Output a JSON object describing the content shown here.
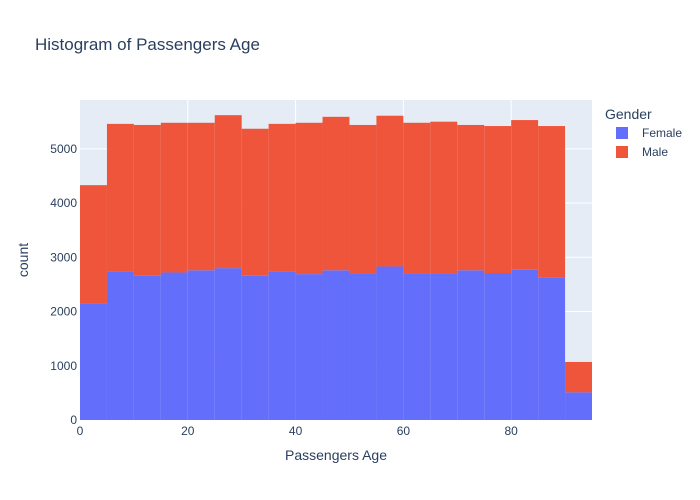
{
  "chart_data": {
    "type": "bar",
    "title": "Histogram of Passengers Age",
    "xlabel": "Passengers Age",
    "ylabel": "count",
    "barmode": "stack",
    "bin_width": 5,
    "x": [
      0,
      5,
      10,
      15,
      20,
      25,
      30,
      35,
      40,
      45,
      50,
      55,
      60,
      65,
      70,
      75,
      80,
      85,
      90
    ],
    "series": [
      {
        "name": "Female",
        "color": "#636efa",
        "values": [
          2150,
          2740,
          2660,
          2720,
          2760,
          2800,
          2660,
          2740,
          2690,
          2760,
          2700,
          2830,
          2700,
          2700,
          2760,
          2710,
          2780,
          2620,
          510
        ]
      },
      {
        "name": "Male",
        "color": "#ef553b",
        "values": [
          2180,
          2720,
          2780,
          2760,
          2720,
          2820,
          2710,
          2720,
          2790,
          2830,
          2740,
          2780,
          2780,
          2800,
          2680,
          2710,
          2750,
          2800,
          560
        ]
      }
    ],
    "xlim": [
      0,
      95
    ],
    "ylim": [
      0,
      5900
    ],
    "xticks": [
      0,
      20,
      40,
      60,
      80
    ],
    "yticks": [
      0,
      1000,
      2000,
      3000,
      4000,
      5000
    ],
    "legend": {
      "title": "Gender",
      "position": "top-right"
    },
    "grid": true,
    "plot_bgcolor": "#e5ecf6"
  }
}
